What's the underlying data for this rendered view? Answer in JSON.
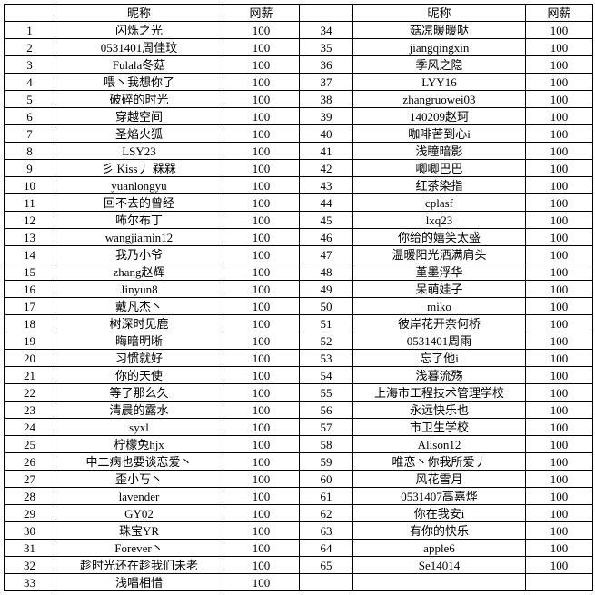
{
  "table": {
    "header": [
      "",
      "昵称",
      "网薪",
      "",
      "昵称",
      "网薪"
    ],
    "rows": [
      [
        "1",
        "闪烁之光",
        "100",
        "34",
        "菇凉暖暖哒",
        "100"
      ],
      [
        "2",
        "0531401周佳玟",
        "100",
        "35",
        "jiangqingxin",
        "100"
      ],
      [
        "3",
        "Fulala冬菇",
        "100",
        "36",
        "季风之隐",
        "100"
      ],
      [
        "4",
        "喂丶我想你了",
        "100",
        "37",
        "LYY16",
        "100"
      ],
      [
        "5",
        "破碎的时光",
        "100",
        "38",
        "zhangruowei03",
        "100"
      ],
      [
        "6",
        "穿越空间",
        "100",
        "39",
        "140209赵珂",
        "100"
      ],
      [
        "7",
        "圣焰火狐",
        "100",
        "40",
        "咖啡苦到心i",
        "100"
      ],
      [
        "8",
        "LSY23",
        "100",
        "41",
        "浅瞳暗影",
        "100"
      ],
      [
        "9",
        "彡 Kiss丿 槑槑",
        "100",
        "42",
        "唧唧巴巴",
        "100"
      ],
      [
        "10",
        "yuanlongyu",
        "100",
        "43",
        "红茶染指",
        "100"
      ],
      [
        "11",
        "回不去的曾经",
        "100",
        "44",
        "cplasf",
        "100"
      ],
      [
        "12",
        "咘尔布丁",
        "100",
        "45",
        "lxq23",
        "100"
      ],
      [
        "13",
        "wangjiamin12",
        "100",
        "46",
        "你给的嬉笑太盛",
        "100"
      ],
      [
        "14",
        "我乃小爷",
        "100",
        "47",
        "温暖阳光洒满肩头",
        "100"
      ],
      [
        "15",
        "zhang赵辉",
        "100",
        "48",
        "堇墨浮华",
        "100"
      ],
      [
        "16",
        "Jinyun8",
        "100",
        "49",
        "呆萌娃子",
        "100"
      ],
      [
        "17",
        "戴凡杰丶",
        "100",
        "50",
        "miko",
        "100"
      ],
      [
        "18",
        "树深时见鹿",
        "100",
        "51",
        "彼岸花开奈何桥",
        "100"
      ],
      [
        "19",
        "晦暗明晰",
        "100",
        "52",
        "0531401周雨",
        "100"
      ],
      [
        "20",
        "习惯就好",
        "100",
        "53",
        "忘了他i",
        "100"
      ],
      [
        "21",
        "你的天使",
        "100",
        "54",
        "浅暮流殇",
        "100"
      ],
      [
        "22",
        "等了那么久",
        "100",
        "55",
        "上海市工程技术管理学校",
        "100"
      ],
      [
        "23",
        "清晨的露水",
        "100",
        "56",
        "永远快乐也",
        "100"
      ],
      [
        "24",
        "syxl",
        "100",
        "57",
        "市卫生学校",
        "100"
      ],
      [
        "25",
        "柠檬兔hjx",
        "100",
        "58",
        "Alison12",
        "100"
      ],
      [
        "26",
        "中二病也要谈恋爱丶",
        "100",
        "59",
        "唯恋丶你我所爱丿",
        "100"
      ],
      [
        "27",
        "歪小丂丶",
        "100",
        "60",
        "风花雪月",
        "100"
      ],
      [
        "28",
        "lavender",
        "100",
        "61",
        "0531407高嘉烨",
        "100"
      ],
      [
        "29",
        "GY02",
        "100",
        "62",
        "你在我安i",
        "100"
      ],
      [
        "30",
        "珠宝YR",
        "100",
        "63",
        "有你的快乐",
        "100"
      ],
      [
        "31",
        "Forever丶",
        "100",
        "64",
        "apple6",
        "100"
      ],
      [
        "32",
        "趁时光还在趁我们未老",
        "100",
        "65",
        "Se14014",
        "100"
      ],
      [
        "33",
        "浅唱相惜",
        "100",
        "",
        "",
        ""
      ]
    ]
  }
}
